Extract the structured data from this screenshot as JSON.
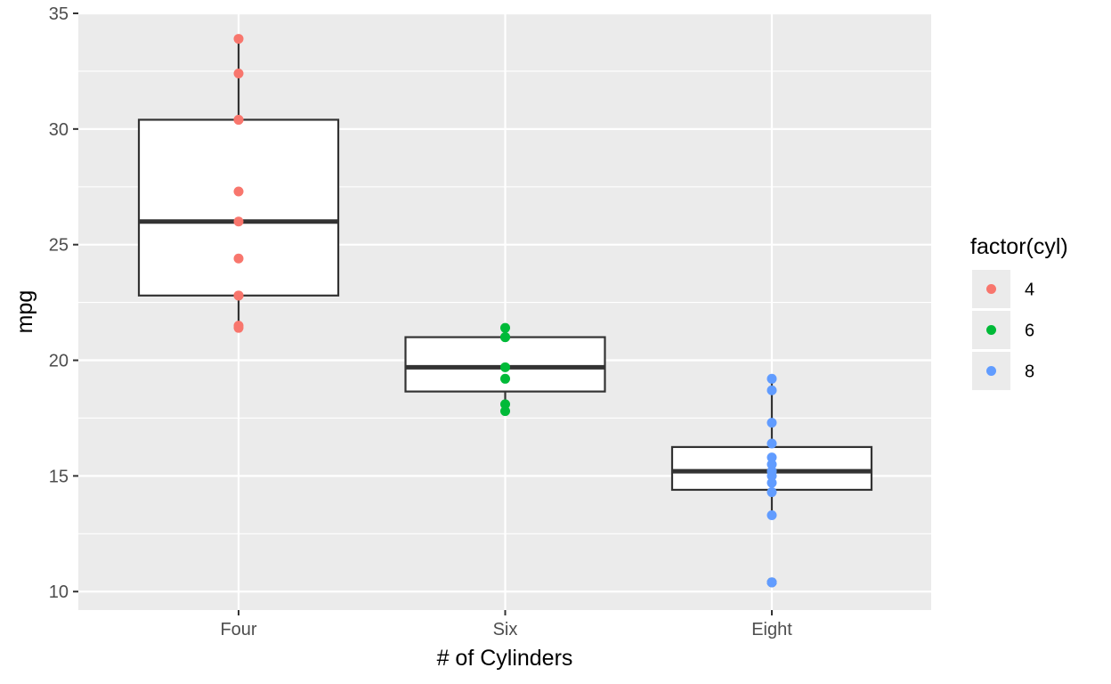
{
  "chart_data": {
    "type": "box",
    "title": "",
    "xlabel": "# of Cylinders",
    "ylabel": "mpg",
    "ylim": [
      9.2,
      35.0
    ],
    "yticks": [
      10,
      15,
      20,
      25,
      30,
      35
    ],
    "categories": [
      "Four",
      "Six",
      "Eight"
    ],
    "grid": true,
    "legend": {
      "title": "factor(cyl)",
      "placement": "right",
      "entries": [
        {
          "label": "4",
          "color": "#F8766D"
        },
        {
          "label": "6",
          "color": "#00BA38"
        },
        {
          "label": "8",
          "color": "#619CFF"
        }
      ]
    },
    "boxes": [
      {
        "category": "Four",
        "min": 21.4,
        "q1": 22.8,
        "median": 26.0,
        "q3": 30.4,
        "max": 33.9
      },
      {
        "category": "Six",
        "min": 17.8,
        "q1": 18.65,
        "median": 19.7,
        "q3": 21.0,
        "max": 21.4
      },
      {
        "category": "Eight",
        "min": 13.3,
        "q1": 14.4,
        "median": 15.2,
        "q3": 16.25,
        "max": 19.2
      }
    ],
    "outliers": [
      {
        "category": "Eight",
        "value": 10.4
      }
    ],
    "points": [
      {
        "category": "Four",
        "group": "4",
        "values": [
          22.8,
          24.4,
          22.8,
          32.4,
          30.4,
          33.9,
          21.5,
          27.3,
          26.0,
          30.4,
          21.4
        ]
      },
      {
        "category": "Six",
        "group": "6",
        "values": [
          21.0,
          21.0,
          21.4,
          18.1,
          19.2,
          17.8,
          19.7
        ]
      },
      {
        "category": "Eight",
        "group": "8",
        "values": [
          18.7,
          14.3,
          16.4,
          17.3,
          15.2,
          10.4,
          10.4,
          14.7,
          15.5,
          15.2,
          13.3,
          19.2,
          15.8,
          15.0
        ]
      }
    ],
    "colors": {
      "panel_background": "#EBEBEB",
      "grid": "#FFFFFF",
      "box_fill": "#FFFFFF",
      "box_stroke": "#333333"
    }
  }
}
